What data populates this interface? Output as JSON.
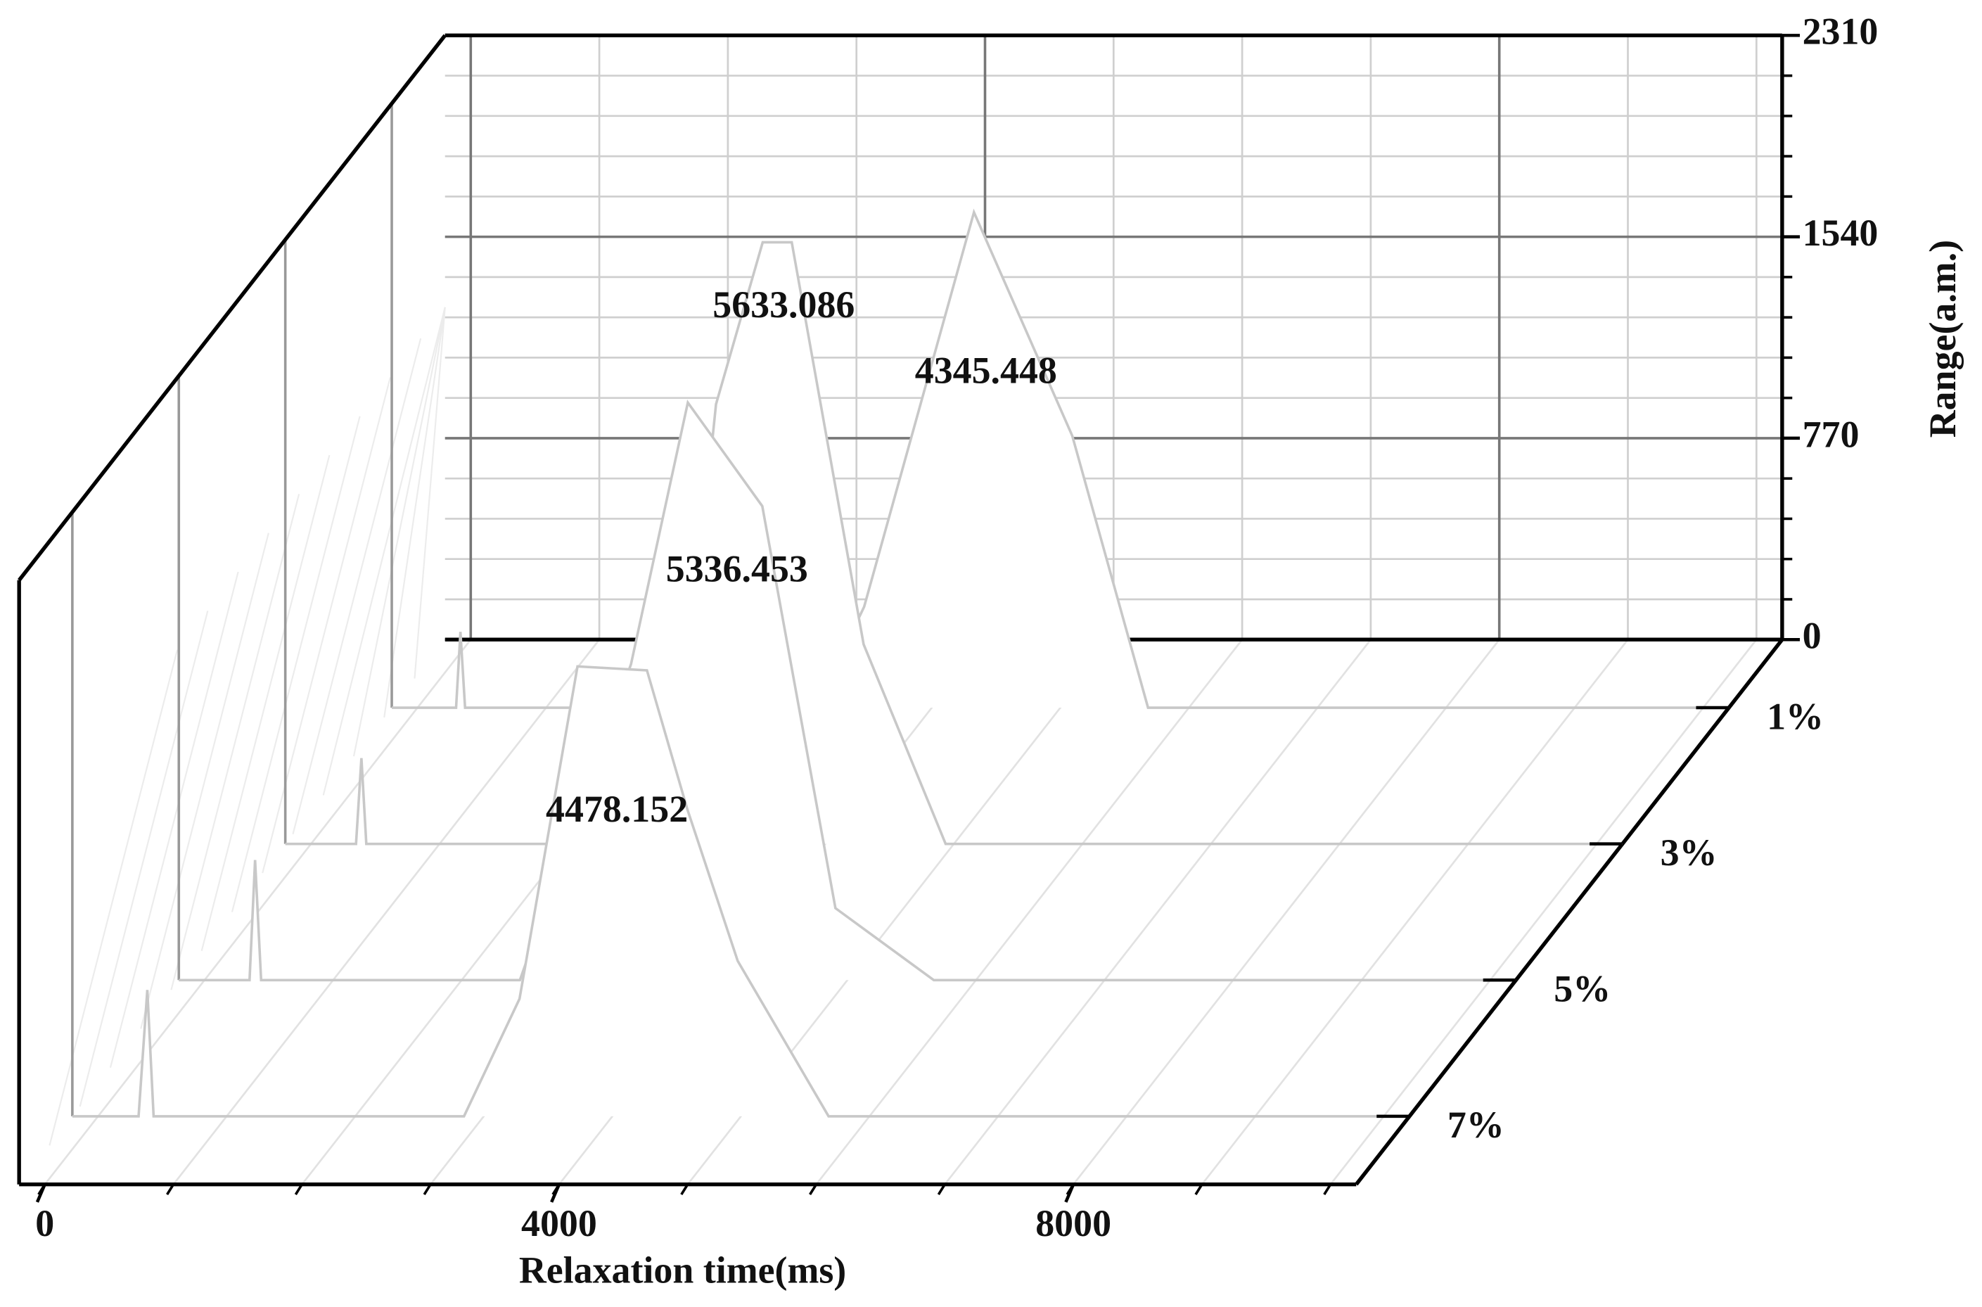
{
  "chart_data": {
    "type": "waterfall3d",
    "x_label": "Relaxation time(ms)",
    "y_label": "Range(a.m.)",
    "xlim": [
      -200,
      10200
    ],
    "xticks": [
      0,
      4000,
      8000
    ],
    "ylim": [
      0,
      2310
    ],
    "yticks": [
      0,
      770,
      1540,
      2310
    ],
    "grid": true,
    "line_color": "#c8c8c8",
    "series": [
      {
        "name": "1%",
        "x": [
          -200,
          300,
          334,
          370,
          3100,
          3474,
          4328,
          5093,
          5682,
          10200
        ],
        "values": [
          0,
          0,
          290,
          0,
          0,
          386,
          1894,
          1039,
          0,
          0
        ],
        "annotation": "4345.448"
      },
      {
        "name": "3%",
        "x": [
          -200,
          350,
          392,
          430,
          2800,
          3150,
          3513,
          3739,
          4298,
          4936,
          10200
        ],
        "values": [
          0,
          0,
          328,
          0,
          0,
          1681,
          2300,
          2300,
          763,
          0,
          0
        ],
        "annotation": "5633.086"
      },
      {
        "name": "5%",
        "x": [
          -200,
          350,
          393,
          440,
          2453,
          3317,
          3759,
          4338,
          4907,
          5672,
          10200
        ],
        "values": [
          0,
          0,
          459,
          0,
          0,
          1208,
          2208,
          1812,
          275,
          0,
          0
        ],
        "annotation": "5336.453"
      },
      {
        "name": "7%",
        "x": [
          -200,
          315,
          383,
          432,
          2846,
          3278,
          3729,
          4269,
          4583,
          4975,
          5682,
          10200
        ],
        "values": [
          0,
          0,
          483,
          0,
          0,
          449,
          1720,
          1705,
          1174,
          594,
          0,
          0
        ],
        "annotation": "4478.152"
      }
    ]
  }
}
